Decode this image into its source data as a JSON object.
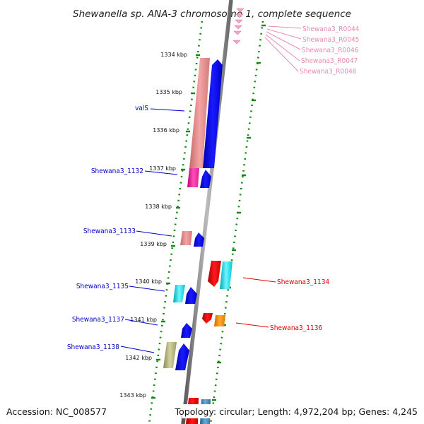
{
  "title": "Shewanella sp. ANA-3 chromosome 1, complete sequence",
  "accession": "Accession: NC_008577",
  "topology": "Topology: circular; Length: 4,972,204 bp; Genes: 4,245",
  "ticks": [
    "1334 kbp",
    "1335 kbp",
    "1336 kbp",
    "1337 kbp",
    "1338 kbp",
    "1339 kbp",
    "1340 kbp",
    "1341 kbp",
    "1342 kbp",
    "1343 kbp"
  ],
  "left_labels": [
    "valS",
    "Shewana3_1132",
    "Shewana3_1133",
    "Shewana3_1135",
    "Shewana3_1137",
    "Shewana3_1138"
  ],
  "right_labels": [
    "Shewana3_1134",
    "Shewana3_1136"
  ],
  "rna_labels": [
    "Shewana3_R0044",
    "Shewana3_R0045",
    "Shewana3_R0046",
    "Shewana3_R0047",
    "Shewana3_R0048"
  ],
  "colors": {
    "blue_label": "#0000cc",
    "red_label": "#dd0000",
    "pink_label": "#e88ab0",
    "dot_green": "#118811",
    "backbone": "#8a8a8a"
  }
}
